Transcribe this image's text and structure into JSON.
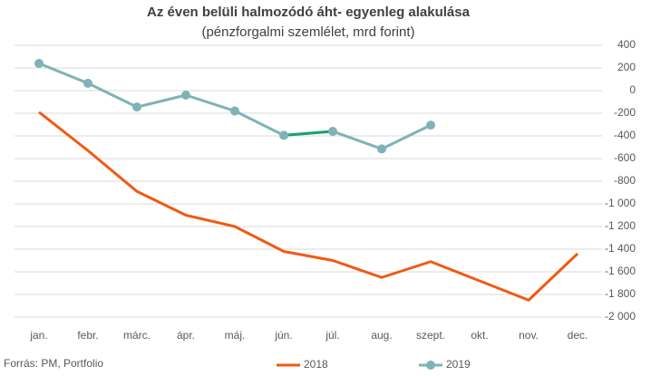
{
  "chart_data": {
    "type": "line",
    "title": "Az éven belüli halmozódó áht- egyenleg alakulása",
    "subtitle": "(pénzforgalmi szemlélet, mrd forint)",
    "source": "Forrás: PM, Portfolio",
    "categories": [
      "jan.",
      "febr.",
      "márc.",
      "ápr.",
      "máj.",
      "jún.",
      "júl.",
      "aug.",
      "szept.",
      "okt.",
      "nov.",
      "dec."
    ],
    "series": [
      {
        "name": "2018",
        "color": "#f05a14",
        "markers": false,
        "values": [
          -190,
          -530,
          -890,
          -1100,
          -1200,
          -1420,
          -1500,
          -1650,
          -1510,
          -1680,
          -1850,
          -1440
        ]
      },
      {
        "name": "2019",
        "color": "#7fb3b5",
        "markers": true,
        "highlight_color": "#1f9e77",
        "highlight_range": [
          5,
          6
        ],
        "values": [
          240,
          65,
          -145,
          -40,
          -180,
          -395,
          -360,
          -515,
          -305,
          null,
          null,
          null
        ]
      }
    ],
    "ylim": [
      -2000,
      400
    ],
    "yticks": [
      400,
      200,
      0,
      -200,
      -400,
      -600,
      -800,
      {
        "value": -1000,
        "label": "-1 000"
      },
      {
        "value": -1200,
        "label": "-1 200"
      },
      {
        "value": -1400,
        "label": "-1 400"
      },
      {
        "value": -1600,
        "label": "-1 600"
      },
      {
        "value": -1800,
        "label": "-1 800"
      },
      {
        "value": -2000,
        "label": "-2 000"
      }
    ],
    "y_axis_side": "right",
    "grid": true,
    "legend": "bottom"
  }
}
